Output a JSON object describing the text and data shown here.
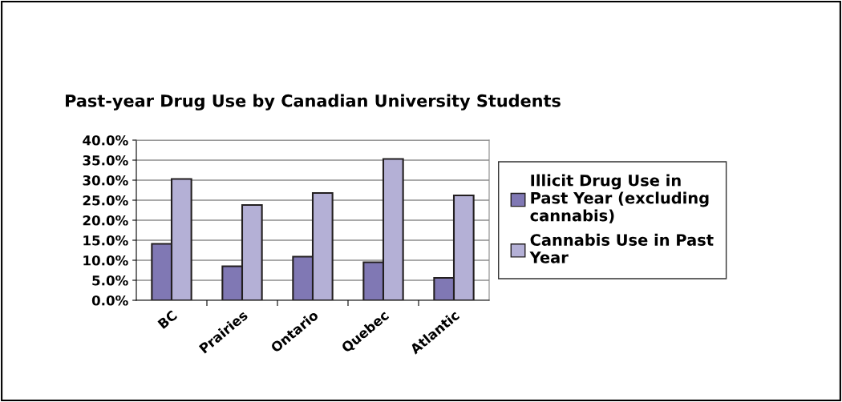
{
  "chart_data": {
    "type": "bar",
    "title": "Past-year Drug Use by Canadian University Students",
    "categories": [
      "BC",
      "Prairies",
      "Ontario",
      "Quebec",
      "Atlantic"
    ],
    "series": [
      {
        "name": "Illicit Drug Use in Past Year (excluding cannabis)",
        "color": "#8078b4",
        "values": [
          14.1,
          8.5,
          10.9,
          9.5,
          5.6
        ]
      },
      {
        "name": "Cannabis Use in Past Year",
        "color": "#b4b0d6",
        "values": [
          30.3,
          23.8,
          26.8,
          35.3,
          26.2
        ]
      }
    ],
    "ylim": [
      0,
      40
    ],
    "yticks": [
      {
        "value": 0,
        "label": "0.0%"
      },
      {
        "value": 5,
        "label": "5.0%"
      },
      {
        "value": 10,
        "label": "10.0%"
      },
      {
        "value": 15,
        "label": "15.0%"
      },
      {
        "value": 20,
        "label": "20.0%"
      },
      {
        "value": 25,
        "label": "25.0%"
      },
      {
        "value": 30,
        "label": "30.0%"
      },
      {
        "value": 35,
        "label": "35.0%"
      },
      {
        "value": 40,
        "label": "40.0%"
      }
    ],
    "grid": "y",
    "legend": "right"
  }
}
